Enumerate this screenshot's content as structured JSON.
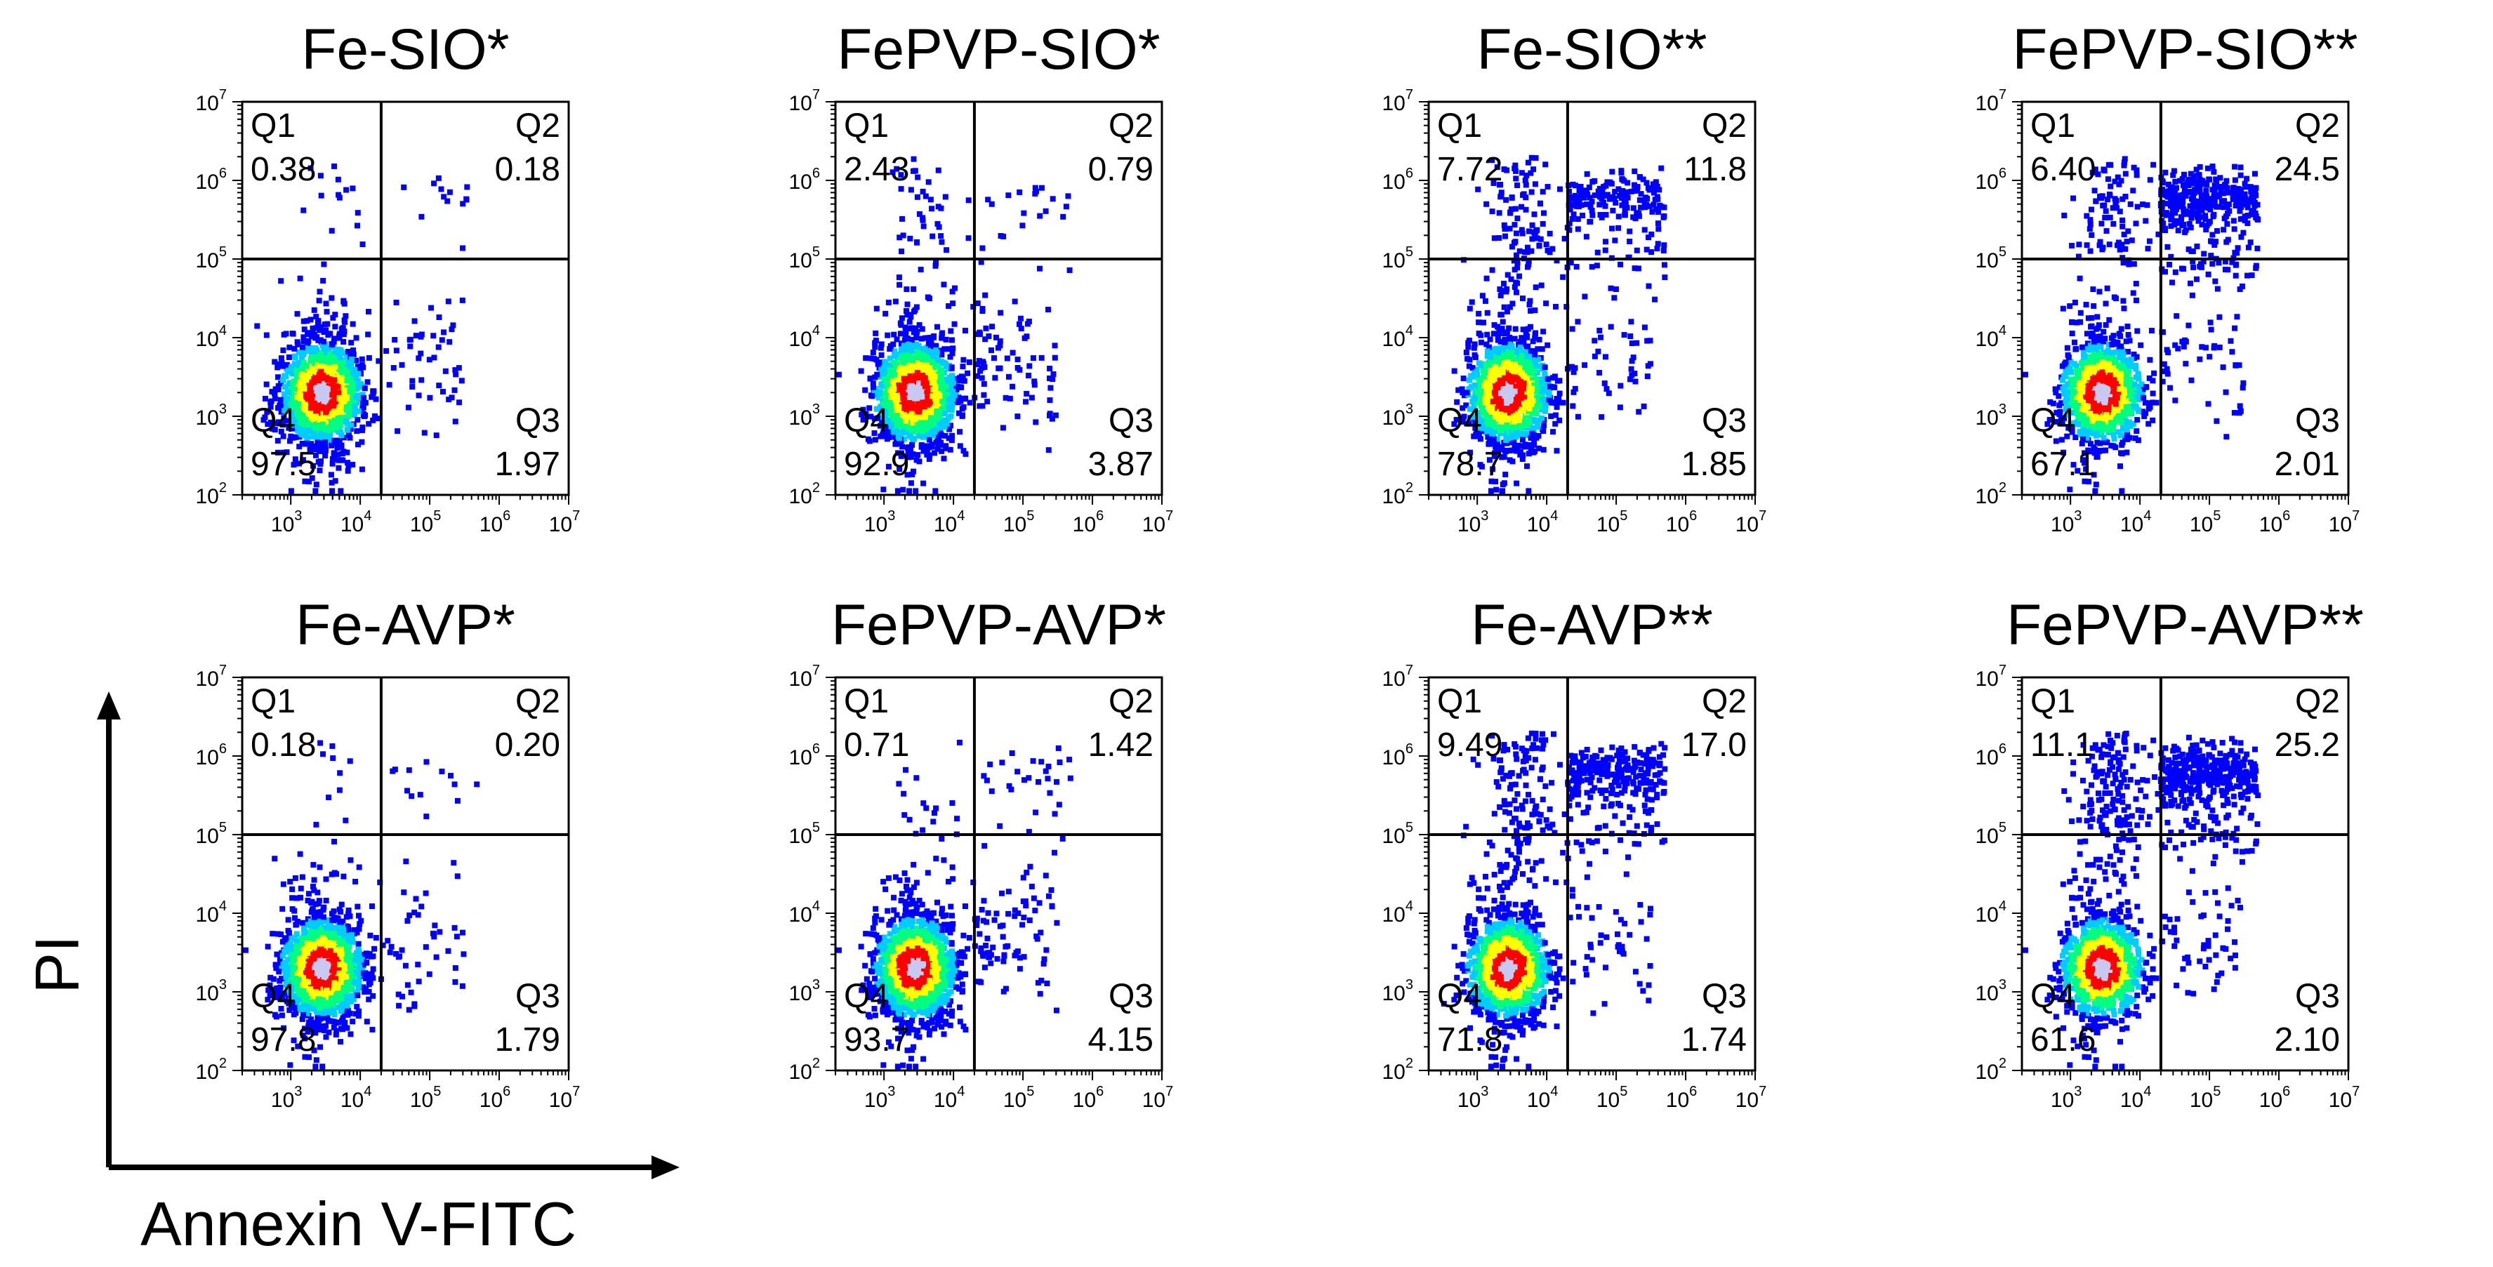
{
  "figure": {
    "x_axis_label": "Annexin V-FITC",
    "y_axis_label": "PI",
    "quadrant_names": [
      "Q1",
      "Q2",
      "Q3",
      "Q4"
    ]
  },
  "colors": {
    "density_low": "#0000ff",
    "density_mid_low": "#00ccff",
    "density_mid": "#00ff80",
    "density_mid_high": "#ffff00",
    "density_high": "#ff0000",
    "density_core": "#c8c8f0",
    "axis": "#000000"
  },
  "chart_data": [
    {
      "type": "scatter",
      "title": "Fe-SIO*",
      "xscale": "log",
      "yscale": "log",
      "xlim": [
        200,
        10000000
      ],
      "ylim": [
        100,
        10000000
      ],
      "x_ticks": [
        "10^3",
        "10^4",
        "10^5",
        "10^6",
        "10^7"
      ],
      "y_ticks": [
        "10^2",
        "10^3",
        "10^4",
        "10^5",
        "10^6",
        "10^7"
      ],
      "gate_x": 20000,
      "gate_y": 100000,
      "quadrants": {
        "Q1": "0.38",
        "Q2": "0.18",
        "Q3": "1.97",
        "Q4": "97.5"
      }
    },
    {
      "type": "scatter",
      "title": "FePVP-SIO*",
      "xscale": "log",
      "yscale": "log",
      "xlim": [
        200,
        10000000
      ],
      "ylim": [
        100,
        10000000
      ],
      "x_ticks": [
        "10^3",
        "10^4",
        "10^5",
        "10^6",
        "10^7"
      ],
      "y_ticks": [
        "10^2",
        "10^3",
        "10^4",
        "10^5",
        "10^6",
        "10^7"
      ],
      "gate_x": 20000,
      "gate_y": 100000,
      "quadrants": {
        "Q1": "2.43",
        "Q2": "0.79",
        "Q3": "3.87",
        "Q4": "92.9"
      }
    },
    {
      "type": "scatter",
      "title": "Fe-SIO**",
      "xscale": "log",
      "yscale": "log",
      "xlim": [
        200,
        10000000
      ],
      "ylim": [
        100,
        10000000
      ],
      "x_ticks": [
        "10^3",
        "10^4",
        "10^5",
        "10^6",
        "10^7"
      ],
      "y_ticks": [
        "10^2",
        "10^3",
        "10^4",
        "10^5",
        "10^6",
        "10^7"
      ],
      "gate_x": 20000,
      "gate_y": 100000,
      "quadrants": {
        "Q1": "7.72",
        "Q2": "11.8",
        "Q3": "1.85",
        "Q4": "78.7"
      }
    },
    {
      "type": "scatter",
      "title": "FePVP-SIO**",
      "xscale": "log",
      "yscale": "log",
      "xlim": [
        200,
        10000000
      ],
      "ylim": [
        100,
        10000000
      ],
      "x_ticks": [
        "10^3",
        "10^4",
        "10^5",
        "10^6",
        "10^7"
      ],
      "y_ticks": [
        "10^2",
        "10^3",
        "10^4",
        "10^5",
        "10^6",
        "10^7"
      ],
      "gate_x": 20000,
      "gate_y": 100000,
      "quadrants": {
        "Q1": "6.40",
        "Q2": "24.5",
        "Q3": "2.01",
        "Q4": "67.1"
      }
    },
    {
      "type": "scatter",
      "title": "Fe-AVP*",
      "xscale": "log",
      "yscale": "log",
      "xlim": [
        200,
        10000000
      ],
      "ylim": [
        100,
        10000000
      ],
      "x_ticks": [
        "10^3",
        "10^4",
        "10^5",
        "10^6",
        "10^7"
      ],
      "y_ticks": [
        "10^2",
        "10^3",
        "10^4",
        "10^5",
        "10^6",
        "10^7"
      ],
      "gate_x": 20000,
      "gate_y": 100000,
      "quadrants": {
        "Q1": "0.18",
        "Q2": "0.20",
        "Q3": "1.79",
        "Q4": "97.8"
      }
    },
    {
      "type": "scatter",
      "title": "FePVP-AVP*",
      "xscale": "log",
      "yscale": "log",
      "xlim": [
        200,
        10000000
      ],
      "ylim": [
        100,
        10000000
      ],
      "x_ticks": [
        "10^3",
        "10^4",
        "10^5",
        "10^6",
        "10^7"
      ],
      "y_ticks": [
        "10^2",
        "10^3",
        "10^4",
        "10^5",
        "10^6",
        "10^7"
      ],
      "gate_x": 20000,
      "gate_y": 100000,
      "quadrants": {
        "Q1": "0.71",
        "Q2": "1.42",
        "Q3": "4.15",
        "Q4": "93.7"
      }
    },
    {
      "type": "scatter",
      "title": "Fe-AVP**",
      "xscale": "log",
      "yscale": "log",
      "xlim": [
        200,
        10000000
      ],
      "ylim": [
        100,
        10000000
      ],
      "x_ticks": [
        "10^3",
        "10^4",
        "10^5",
        "10^6",
        "10^7"
      ],
      "y_ticks": [
        "10^2",
        "10^3",
        "10^4",
        "10^5",
        "10^6",
        "10^7"
      ],
      "gate_x": 20000,
      "gate_y": 100000,
      "quadrants": {
        "Q1": "9.49",
        "Q2": "17.0",
        "Q3": "1.74",
        "Q4": "71.8"
      }
    },
    {
      "type": "scatter",
      "title": "FePVP-AVP**",
      "xscale": "log",
      "yscale": "log",
      "xlim": [
        200,
        10000000
      ],
      "ylim": [
        100,
        10000000
      ],
      "x_ticks": [
        "10^3",
        "10^4",
        "10^5",
        "10^6",
        "10^7"
      ],
      "y_ticks": [
        "10^2",
        "10^3",
        "10^4",
        "10^5",
        "10^6",
        "10^7"
      ],
      "gate_x": 20000,
      "gate_y": 100000,
      "quadrants": {
        "Q1": "11.1",
        "Q2": "25.2",
        "Q3": "2.10",
        "Q4": "61.6"
      }
    }
  ]
}
